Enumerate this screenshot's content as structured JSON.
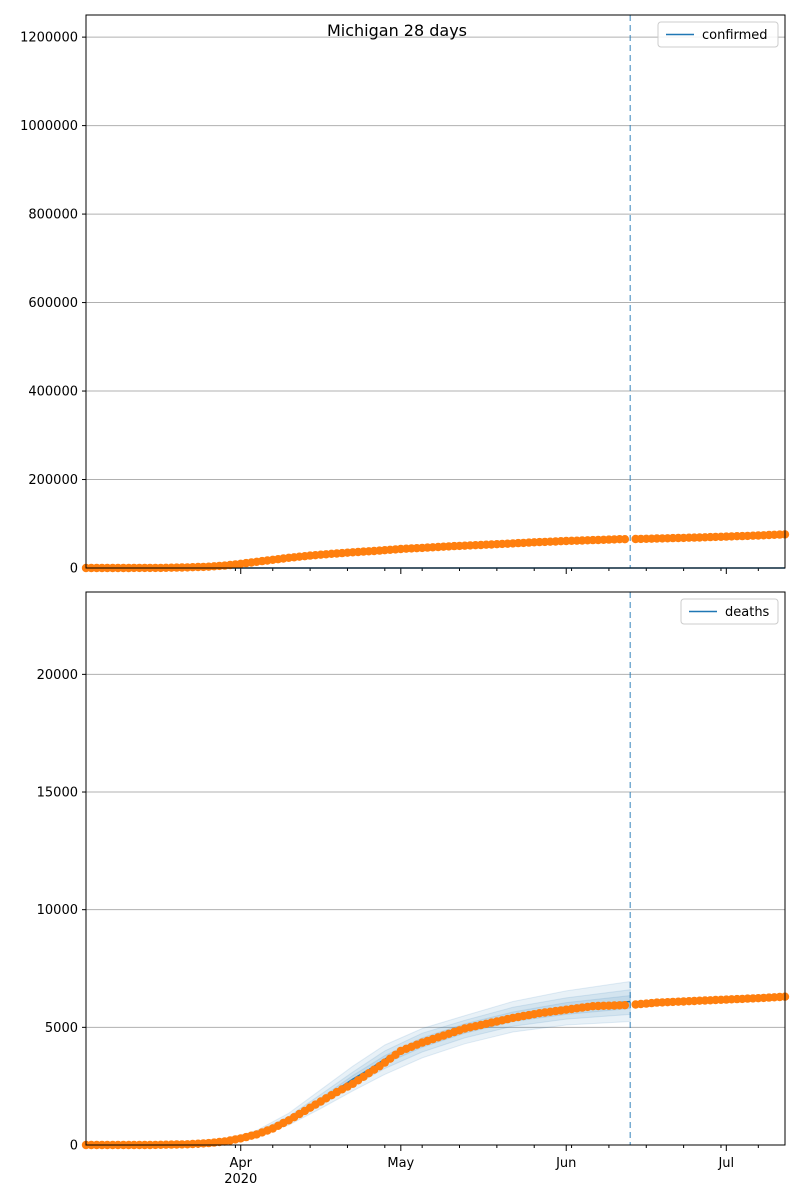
{
  "title": "Michigan 28 days",
  "colors": {
    "model": "#1f77b4",
    "observed": "#ff7f0e",
    "band": "#1f77b4",
    "grid": "#b0b0b0",
    "cutoff": "#1f77b4"
  },
  "x_axis": {
    "range": [
      "2020-03-03",
      "2020-07-12"
    ],
    "month_ticks": [
      {
        "date": "2020-04-01",
        "label": "Apr"
      },
      {
        "date": "2020-05-01",
        "label": "May"
      },
      {
        "date": "2020-06-01",
        "label": "Jun"
      },
      {
        "date": "2020-07-01",
        "label": "Jul"
      }
    ],
    "year_label": "2020",
    "year_label_date": "2020-04-01"
  },
  "cutoff_date": "2020-06-13",
  "chart_data": [
    {
      "type": "line",
      "legend": "confirmed",
      "legend_position": "upper-right",
      "grid": true,
      "ylim": [
        0,
        1250000
      ],
      "yticks": [
        0,
        200000,
        400000,
        600000,
        800000,
        1000000,
        1200000
      ],
      "series": [
        {
          "name": "confirmed",
          "x": [
            "2020-03-03",
            "2020-03-10",
            "2020-03-17",
            "2020-03-24",
            "2020-03-28",
            "2020-04-01",
            "2020-04-05",
            "2020-04-10",
            "2020-04-15",
            "2020-04-20",
            "2020-04-25",
            "2020-05-01",
            "2020-05-08",
            "2020-05-15",
            "2020-05-22",
            "2020-05-29",
            "2020-06-05",
            "2020-06-12",
            "2020-06-15",
            "2020-06-22",
            "2020-06-29",
            "2020-07-06",
            "2020-07-12"
          ],
          "y": [
            0,
            0,
            0,
            0,
            0,
            0,
            0,
            0,
            0,
            0,
            0,
            0,
            0,
            0,
            0,
            0,
            0,
            0,
            0,
            0,
            0,
            0,
            0
          ]
        },
        {
          "name": "observed",
          "x": [
            "2020-03-03",
            "2020-03-10",
            "2020-03-17",
            "2020-03-22",
            "2020-03-26",
            "2020-03-29",
            "2020-04-01",
            "2020-04-04",
            "2020-04-07",
            "2020-04-10",
            "2020-04-14",
            "2020-04-18",
            "2020-04-22",
            "2020-04-26",
            "2020-05-01",
            "2020-05-06",
            "2020-05-11",
            "2020-05-16",
            "2020-05-21",
            "2020-05-26",
            "2020-06-01",
            "2020-06-06",
            "2020-06-11",
            "2020-06-16",
            "2020-06-21",
            "2020-06-26",
            "2020-07-01",
            "2020-07-06",
            "2020-07-12"
          ],
          "y": [
            0,
            50,
            300,
            1300,
            3000,
            5500,
            9500,
            14000,
            18500,
            23000,
            28000,
            32000,
            35500,
            38500,
            43000,
            46000,
            49500,
            52000,
            55000,
            58000,
            61000,
            63000,
            65000,
            66000,
            67500,
            69000,
            71000,
            73000,
            76000
          ]
        }
      ]
    },
    {
      "type": "line",
      "legend": "deaths",
      "legend_position": "upper-right",
      "grid": true,
      "ylim": [
        0,
        23500
      ],
      "yticks": [
        0,
        5000,
        10000,
        15000,
        20000
      ],
      "series": [
        {
          "name": "deaths",
          "x": [
            "2020-03-03",
            "2020-03-15",
            "2020-03-22",
            "2020-03-26",
            "2020-03-29",
            "2020-04-01",
            "2020-04-04",
            "2020-04-07",
            "2020-04-10",
            "2020-04-13",
            "2020-04-16",
            "2020-04-19",
            "2020-04-22",
            "2020-04-25",
            "2020-04-28",
            "2020-05-01",
            "2020-05-05",
            "2020-05-09",
            "2020-05-13",
            "2020-05-17",
            "2020-05-22",
            "2020-05-27",
            "2020-06-01",
            "2020-06-06",
            "2020-06-13"
          ],
          "y": [
            0,
            0,
            30,
            90,
            170,
            300,
            480,
            700,
            1050,
            1450,
            1900,
            2350,
            2800,
            3200,
            3650,
            4050,
            4400,
            4750,
            5000,
            5250,
            5500,
            5650,
            5800,
            5950,
            6100
          ]
        },
        {
          "name": "observed",
          "x": [
            "2020-03-03",
            "2020-03-15",
            "2020-03-22",
            "2020-03-26",
            "2020-03-29",
            "2020-04-01",
            "2020-04-04",
            "2020-04-07",
            "2020-04-10",
            "2020-04-13",
            "2020-04-16",
            "2020-04-19",
            "2020-04-22",
            "2020-04-25",
            "2020-04-28",
            "2020-05-01",
            "2020-05-05",
            "2020-05-09",
            "2020-05-13",
            "2020-05-17",
            "2020-05-22",
            "2020-05-27",
            "2020-06-01",
            "2020-06-06",
            "2020-06-13",
            "2020-06-18",
            "2020-06-23",
            "2020-06-28",
            "2020-07-03",
            "2020-07-08",
            "2020-07-12"
          ],
          "y": [
            0,
            0,
            30,
            80,
            150,
            280,
            450,
            700,
            1050,
            1450,
            1850,
            2250,
            2600,
            3050,
            3500,
            4000,
            4350,
            4650,
            4950,
            5150,
            5400,
            5600,
            5750,
            5900,
            5950,
            6050,
            6100,
            6150,
            6200,
            6250,
            6300
          ]
        }
      ],
      "bands": [
        {
          "x": [
            "2020-03-29",
            "2020-04-04",
            "2020-04-10",
            "2020-04-16",
            "2020-04-22",
            "2020-04-28",
            "2020-05-05",
            "2020-05-13",
            "2020-05-22",
            "2020-06-01",
            "2020-06-13"
          ],
          "lower": [
            120,
            380,
            850,
            1550,
            2300,
            3000,
            3700,
            4300,
            4800,
            5100,
            5250
          ],
          "upper": [
            230,
            620,
            1350,
            2350,
            3350,
            4250,
            4950,
            5500,
            6100,
            6550,
            6950
          ]
        },
        {
          "x": [
            "2020-03-29",
            "2020-04-04",
            "2020-04-10",
            "2020-04-16",
            "2020-04-22",
            "2020-04-28",
            "2020-05-05",
            "2020-05-13",
            "2020-05-22",
            "2020-06-01",
            "2020-06-13"
          ],
          "lower": [
            140,
            420,
            930,
            1680,
            2500,
            3250,
            3950,
            4550,
            5050,
            5350,
            5550
          ],
          "upper": [
            205,
            560,
            1220,
            2150,
            3100,
            4000,
            4750,
            5300,
            5850,
            6250,
            6600
          ]
        },
        {
          "x": [
            "2020-03-29",
            "2020-04-04",
            "2020-04-10",
            "2020-04-16",
            "2020-04-22",
            "2020-04-28",
            "2020-05-05",
            "2020-05-13",
            "2020-05-22",
            "2020-06-01",
            "2020-06-13"
          ],
          "lower": [
            155,
            450,
            990,
            1790,
            2650,
            3450,
            4150,
            4750,
            5250,
            5550,
            5800
          ],
          "upper": [
            190,
            520,
            1130,
            2000,
            2950,
            3800,
            4550,
            5150,
            5650,
            6050,
            6350
          ]
        }
      ]
    }
  ]
}
